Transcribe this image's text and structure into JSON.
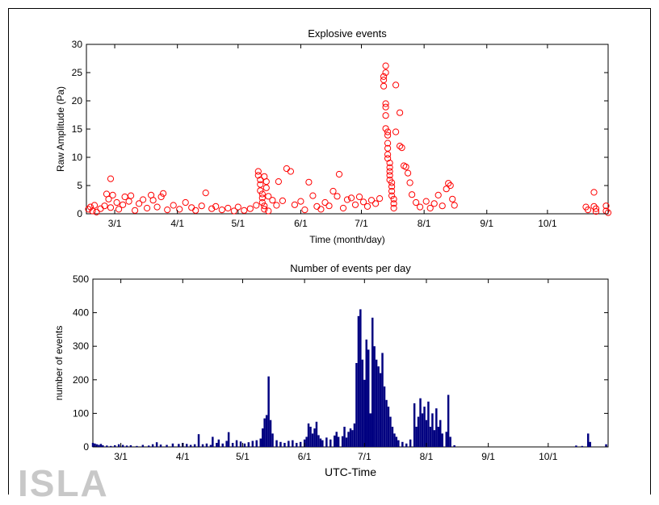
{
  "watermark": "ISLA",
  "chart_data": [
    {
      "type": "scatter",
      "title": "Explosive events",
      "xlabel": "Time (month/day)",
      "ylabel": "Raw Amplitude (Pa)",
      "ylim": [
        0,
        30
      ],
      "yticks": [
        0,
        5,
        10,
        15,
        20,
        25,
        30
      ],
      "xlim": [
        "02-15",
        "10-31"
      ],
      "xticks": [
        "3/1",
        "4/1",
        "5/1",
        "6/1",
        "7/1",
        "8/1",
        "9/1",
        "10/1"
      ],
      "xtick_dates": [
        "03-01",
        "04-01",
        "05-01",
        "06-01",
        "07-01",
        "08-01",
        "09-01",
        "10-01"
      ],
      "marker": "circle",
      "color": "#ff0000",
      "points": [
        [
          "02-16",
          0.8
        ],
        [
          "02-17",
          1.2
        ],
        [
          "02-18",
          0.5
        ],
        [
          "02-19",
          1.5
        ],
        [
          "02-20",
          0.3
        ],
        [
          "02-22",
          0.9
        ],
        [
          "02-24",
          1.4
        ],
        [
          "02-25",
          3.5
        ],
        [
          "02-26",
          2.6
        ],
        [
          "02-27",
          6.2
        ],
        [
          "02-27",
          1.1
        ],
        [
          "02-28",
          3.3
        ],
        [
          "03-02",
          2.0
        ],
        [
          "03-03",
          0.8
        ],
        [
          "03-05",
          1.6
        ],
        [
          "03-06",
          3.0
        ],
        [
          "03-08",
          2.2
        ],
        [
          "03-09",
          3.2
        ],
        [
          "03-11",
          0.6
        ],
        [
          "03-13",
          1.8
        ],
        [
          "03-15",
          2.5
        ],
        [
          "03-17",
          1.0
        ],
        [
          "03-19",
          3.3
        ],
        [
          "03-20",
          2.4
        ],
        [
          "03-22",
          1.2
        ],
        [
          "03-24",
          3.0
        ],
        [
          "03-25",
          3.6
        ],
        [
          "03-27",
          0.7
        ],
        [
          "03-30",
          1.5
        ],
        [
          "04-02",
          0.8
        ],
        [
          "04-05",
          2.0
        ],
        [
          "04-08",
          1.1
        ],
        [
          "04-10",
          0.6
        ],
        [
          "04-13",
          1.4
        ],
        [
          "04-15",
          3.7
        ],
        [
          "04-18",
          0.9
        ],
        [
          "04-20",
          1.3
        ],
        [
          "04-23",
          0.7
        ],
        [
          "04-26",
          1.0
        ],
        [
          "04-29",
          0.5
        ],
        [
          "05-01",
          1.2
        ],
        [
          "05-04",
          0.6
        ],
        [
          "05-07",
          0.9
        ],
        [
          "05-10",
          1.5
        ],
        [
          "05-11",
          7.5
        ],
        [
          "05-11",
          6.8
        ],
        [
          "05-12",
          6.0
        ],
        [
          "05-12",
          5.2
        ],
        [
          "05-12",
          4.1
        ],
        [
          "05-13",
          3.5
        ],
        [
          "05-13",
          2.8
        ],
        [
          "05-13",
          2.0
        ],
        [
          "05-14",
          6.6
        ],
        [
          "05-14",
          1.4
        ],
        [
          "05-14",
          0.8
        ],
        [
          "05-15",
          5.7
        ],
        [
          "05-15",
          4.6
        ],
        [
          "05-16",
          3.1
        ],
        [
          "05-16",
          0.5
        ],
        [
          "05-18",
          2.4
        ],
        [
          "05-20",
          1.5
        ],
        [
          "05-21",
          5.7
        ],
        [
          "05-23",
          2.3
        ],
        [
          "05-25",
          8.0
        ],
        [
          "05-27",
          7.5
        ],
        [
          "05-29",
          1.6
        ],
        [
          "06-01",
          2.2
        ],
        [
          "06-03",
          0.7
        ],
        [
          "06-05",
          5.6
        ],
        [
          "06-07",
          3.2
        ],
        [
          "06-09",
          1.3
        ],
        [
          "06-11",
          0.8
        ],
        [
          "06-13",
          2.0
        ],
        [
          "06-15",
          1.4
        ],
        [
          "06-17",
          4.0
        ],
        [
          "06-19",
          3.1
        ],
        [
          "06-20",
          7.0
        ],
        [
          "06-22",
          1.0
        ],
        [
          "06-24",
          2.5
        ],
        [
          "06-26",
          2.8
        ],
        [
          "06-28",
          1.6
        ],
        [
          "06-30",
          3.0
        ],
        [
          "07-02",
          2.1
        ],
        [
          "07-04",
          1.3
        ],
        [
          "07-06",
          2.4
        ],
        [
          "07-08",
          1.8
        ],
        [
          "07-10",
          2.7
        ],
        [
          "07-12",
          24.3
        ],
        [
          "07-12",
          23.7
        ],
        [
          "07-12",
          22.6
        ],
        [
          "07-13",
          26.2
        ],
        [
          "07-13",
          25.0
        ],
        [
          "07-13",
          19.5
        ],
        [
          "07-13",
          18.9
        ],
        [
          "07-13",
          17.4
        ],
        [
          "07-13",
          15.1
        ],
        [
          "07-14",
          14.5
        ],
        [
          "07-14",
          13.9
        ],
        [
          "07-14",
          12.5
        ],
        [
          "07-14",
          11.6
        ],
        [
          "07-14",
          10.5
        ],
        [
          "07-14",
          9.8
        ],
        [
          "07-15",
          9.0
        ],
        [
          "07-15",
          8.2
        ],
        [
          "07-15",
          7.5
        ],
        [
          "07-15",
          6.8
        ],
        [
          "07-15",
          6.0
        ],
        [
          "07-16",
          5.5
        ],
        [
          "07-16",
          4.8
        ],
        [
          "07-16",
          4.0
        ],
        [
          "07-16",
          3.2
        ],
        [
          "07-17",
          2.6
        ],
        [
          "07-17",
          1.8
        ],
        [
          "07-17",
          1.0
        ],
        [
          "07-18",
          22.8
        ],
        [
          "07-18",
          14.5
        ],
        [
          "07-20",
          17.9
        ],
        [
          "07-20",
          12.0
        ],
        [
          "07-21",
          11.7
        ],
        [
          "07-22",
          8.5
        ],
        [
          "07-23",
          8.3
        ],
        [
          "07-24",
          7.2
        ],
        [
          "07-25",
          5.5
        ],
        [
          "07-26",
          3.4
        ],
        [
          "07-28",
          2.0
        ],
        [
          "07-30",
          1.2
        ],
        [
          "08-02",
          2.2
        ],
        [
          "08-04",
          1.0
        ],
        [
          "08-06",
          1.8
        ],
        [
          "08-08",
          3.3
        ],
        [
          "08-10",
          1.4
        ],
        [
          "08-12",
          4.4
        ],
        [
          "08-13",
          5.4
        ],
        [
          "08-14",
          5.0
        ],
        [
          "08-15",
          2.6
        ],
        [
          "08-16",
          1.5
        ],
        [
          "10-20",
          1.2
        ],
        [
          "10-21",
          0.7
        ],
        [
          "10-24",
          3.8
        ],
        [
          "10-24",
          1.3
        ],
        [
          "10-25",
          0.9
        ],
        [
          "10-25",
          0.4
        ],
        [
          "10-30",
          1.4
        ],
        [
          "10-30",
          0.5
        ],
        [
          "10-31",
          0.2
        ]
      ]
    },
    {
      "type": "bar",
      "title": "Number of events per day",
      "xlabel": "UTC-Time",
      "ylabel": "number of events",
      "ylim": [
        0,
        500
      ],
      "yticks": [
        0,
        100,
        200,
        300,
        400,
        500
      ],
      "xlim": [
        "02-15",
        "10-31"
      ],
      "xticks": [
        "3/1",
        "4/1",
        "5/1",
        "6/1",
        "7/1",
        "8/1",
        "9/1",
        "10/1"
      ],
      "xtick_dates": [
        "03-01",
        "04-01",
        "05-01",
        "06-01",
        "07-01",
        "08-01",
        "09-01",
        "10-01"
      ],
      "color": "#000080",
      "bars": [
        [
          "02-15",
          12
        ],
        [
          "02-16",
          10
        ],
        [
          "02-17",
          8
        ],
        [
          "02-18",
          6
        ],
        [
          "02-19",
          9
        ],
        [
          "02-20",
          5
        ],
        [
          "02-22",
          4
        ],
        [
          "02-24",
          3
        ],
        [
          "02-26",
          5
        ],
        [
          "02-28",
          8
        ],
        [
          "03-02",
          6
        ],
        [
          "03-04",
          4
        ],
        [
          "03-06",
          5
        ],
        [
          "03-09",
          3
        ],
        [
          "03-12",
          6
        ],
        [
          "03-15",
          4
        ],
        [
          "03-17",
          8
        ],
        [
          "03-19",
          14
        ],
        [
          "03-21",
          7
        ],
        [
          "03-24",
          6
        ],
        [
          "03-27",
          10
        ],
        [
          "03-30",
          9
        ],
        [
          "04-01",
          12
        ],
        [
          "04-03",
          9
        ],
        [
          "04-05",
          6
        ],
        [
          "04-07",
          8
        ],
        [
          "04-09",
          38
        ],
        [
          "04-11",
          8
        ],
        [
          "04-13",
          10
        ],
        [
          "04-15",
          6
        ],
        [
          "04-16",
          30
        ],
        [
          "04-18",
          12
        ],
        [
          "04-19",
          22
        ],
        [
          "04-21",
          10
        ],
        [
          "04-23",
          18
        ],
        [
          "04-24",
          44
        ],
        [
          "04-26",
          12
        ],
        [
          "04-28",
          20
        ],
        [
          "04-30",
          16
        ],
        [
          "05-02",
          10
        ],
        [
          "05-04",
          14
        ],
        [
          "05-06",
          18
        ],
        [
          "05-08",
          20
        ],
        [
          "05-10",
          25
        ],
        [
          "05-11",
          55
        ],
        [
          "05-12",
          85
        ],
        [
          "05-13",
          95
        ],
        [
          "05-14",
          210
        ],
        [
          "05-15",
          80
        ],
        [
          "05-16",
          40
        ],
        [
          "05-18",
          20
        ],
        [
          "05-20",
          15
        ],
        [
          "05-22",
          12
        ],
        [
          "05-24",
          18
        ],
        [
          "05-26",
          20
        ],
        [
          "05-28",
          12
        ],
        [
          "05-30",
          15
        ],
        [
          "06-01",
          22
        ],
        [
          "06-02",
          30
        ],
        [
          "06-03",
          70
        ],
        [
          "06-04",
          60
        ],
        [
          "06-05",
          40
        ],
        [
          "06-06",
          55
        ],
        [
          "06-07",
          75
        ],
        [
          "06-08",
          35
        ],
        [
          "06-09",
          25
        ],
        [
          "06-10",
          20
        ],
        [
          "06-12",
          28
        ],
        [
          "06-14",
          22
        ],
        [
          "06-16",
          34
        ],
        [
          "06-17",
          45
        ],
        [
          "06-18",
          30
        ],
        [
          "06-20",
          32
        ],
        [
          "06-21",
          60
        ],
        [
          "06-22",
          28
        ],
        [
          "06-23",
          45
        ],
        [
          "06-24",
          55
        ],
        [
          "06-25",
          50
        ],
        [
          "06-26",
          70
        ],
        [
          "06-27",
          250
        ],
        [
          "06-28",
          390
        ],
        [
          "06-29",
          410
        ],
        [
          "06-30",
          260
        ],
        [
          "07-01",
          200
        ],
        [
          "07-02",
          320
        ],
        [
          "07-03",
          290
        ],
        [
          "07-04",
          100
        ],
        [
          "07-05",
          385
        ],
        [
          "07-06",
          300
        ],
        [
          "07-07",
          260
        ],
        [
          "07-08",
          240
        ],
        [
          "07-09",
          220
        ],
        [
          "07-10",
          280
        ],
        [
          "07-11",
          180
        ],
        [
          "07-12",
          140
        ],
        [
          "07-13",
          120
        ],
        [
          "07-14",
          90
        ],
        [
          "07-15",
          60
        ],
        [
          "07-16",
          40
        ],
        [
          "07-17",
          30
        ],
        [
          "07-18",
          20
        ],
        [
          "07-20",
          15
        ],
        [
          "07-22",
          10
        ],
        [
          "07-24",
          22
        ],
        [
          "07-26",
          130
        ],
        [
          "07-27",
          60
        ],
        [
          "07-28",
          90
        ],
        [
          "07-29",
          145
        ],
        [
          "07-30",
          100
        ],
        [
          "07-31",
          120
        ],
        [
          "08-01",
          80
        ],
        [
          "08-02",
          135
        ],
        [
          "08-03",
          60
        ],
        [
          "08-04",
          100
        ],
        [
          "08-05",
          50
        ],
        [
          "08-06",
          115
        ],
        [
          "08-07",
          60
        ],
        [
          "08-08",
          80
        ],
        [
          "08-09",
          40
        ],
        [
          "08-11",
          45
        ],
        [
          "08-12",
          155
        ],
        [
          "08-13",
          30
        ],
        [
          "08-15",
          5
        ],
        [
          "10-15",
          4
        ],
        [
          "10-18",
          3
        ],
        [
          "10-21",
          40
        ],
        [
          "10-22",
          15
        ],
        [
          "10-30",
          8
        ]
      ]
    }
  ]
}
